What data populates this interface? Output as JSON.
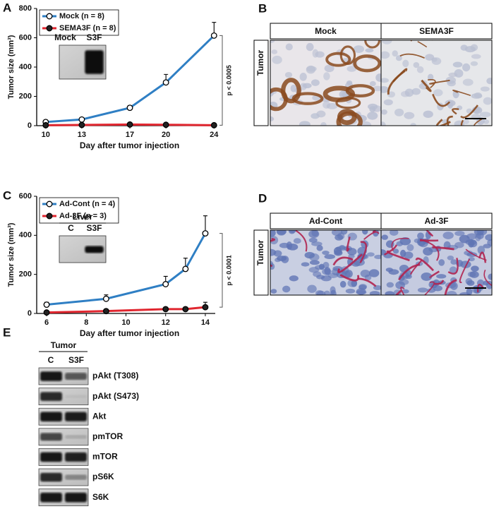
{
  "chart_data": [
    {
      "type": "line",
      "panel_label": "A",
      "ylabel": "Tumor size (mm³)",
      "xlabel": "Day after tumor injection",
      "x": [
        10,
        13,
        17,
        20,
        24
      ],
      "xlim": [
        9.25,
        24.1
      ],
      "xticks": [
        10,
        13,
        17,
        20,
        24
      ],
      "ylim": [
        0,
        800
      ],
      "yticks": [
        0,
        200,
        400,
        600,
        800
      ],
      "series": [
        {
          "name": "Mock (n = 8)",
          "color": "#2f7fc4",
          "marker": "open",
          "values": [
            25,
            42,
            122,
            295,
            615
          ],
          "errors": [
            5,
            5,
            15,
            55,
            90
          ]
        },
        {
          "name": "SEMA3F (n = 8)",
          "color": "#e0262f",
          "marker": "filled",
          "values": [
            3,
            5,
            8,
            6,
            3
          ],
          "errors": [
            2,
            2,
            3,
            2,
            2
          ]
        }
      ],
      "annotation": "p < 0.0005",
      "inset_labels": [
        "Mock",
        "S3F"
      ]
    },
    {
      "type": "line",
      "panel_label": "C",
      "ylabel": "Tumor size (mm³)",
      "xlabel": "Day after tumor injection",
      "x": [
        6,
        9,
        12,
        13,
        14
      ],
      "xlim": [
        5.5,
        14.5
      ],
      "xticks": [
        6,
        8,
        10,
        12,
        14
      ],
      "ylim": [
        0,
        600
      ],
      "yticks": [
        0,
        200,
        400,
        600
      ],
      "series": [
        {
          "name": "Ad-Cont (n = 4)",
          "color": "#2f7fc4",
          "marker": "open",
          "values": [
            45,
            75,
            150,
            228,
            410
          ],
          "errors": [
            12,
            20,
            40,
            55,
            90
          ]
        },
        {
          "name": "Ad-3F (n = 3)",
          "color": "#e0262f",
          "marker": "filled",
          "values": [
            5,
            12,
            22,
            22,
            32
          ],
          "errors": [
            3,
            5,
            5,
            10,
            25
          ]
        }
      ],
      "annotation": "p < 0.0001",
      "inset_title": "Liver",
      "inset_labels": [
        "C",
        "S3F"
      ]
    }
  ],
  "panel_B": {
    "label": "B",
    "columns": [
      "Mock",
      "SEMA3F"
    ],
    "row": "Tumor"
  },
  "panel_D": {
    "label": "D",
    "columns": [
      "Ad-Cont",
      "Ad-3F"
    ],
    "row": "Tumor"
  },
  "panel_E": {
    "label": "E",
    "group": "Tumor",
    "lanes": [
      "C",
      "S3F"
    ],
    "rows": [
      "pAkt (T308)",
      "pAkt (S473)",
      "Akt",
      "pmTOR",
      "mTOR",
      "pS6K",
      "S6K"
    ]
  }
}
